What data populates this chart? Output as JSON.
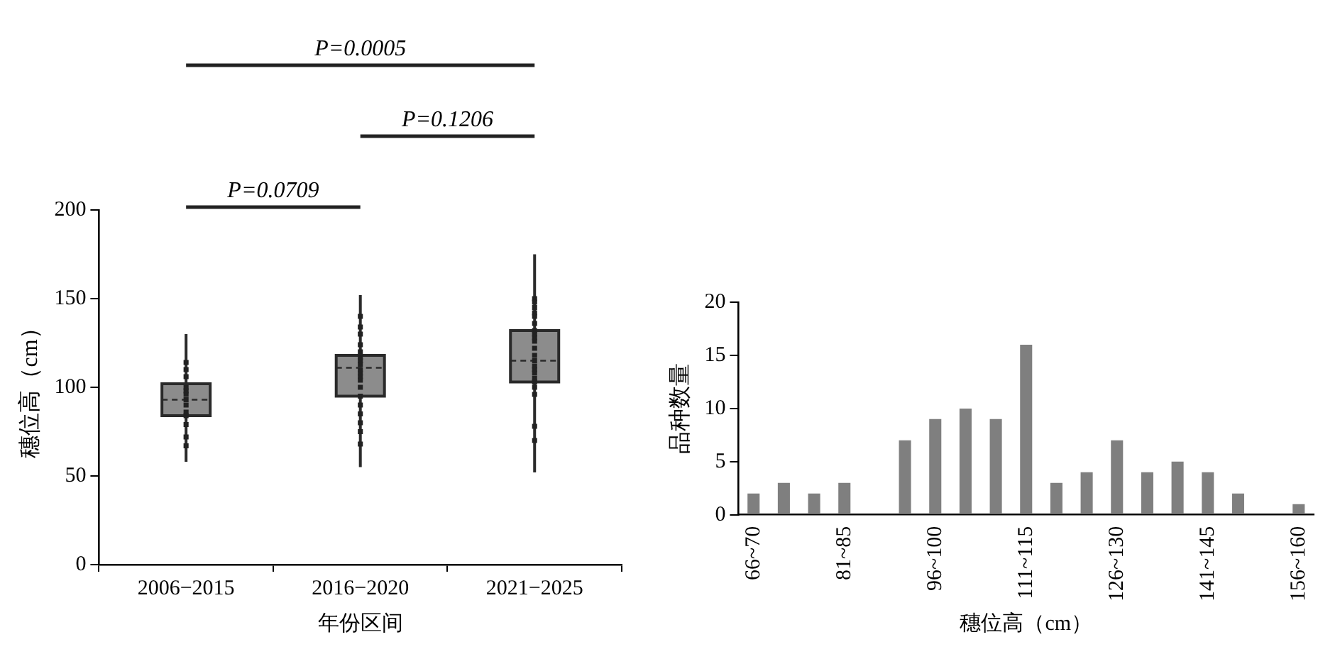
{
  "chart_data": [
    {
      "type": "box",
      "categories": [
        "2006−2015",
        "2016−2020",
        "2021−2025"
      ],
      "xlabel": "年份区间",
      "ylabel": "穗位高（cm）",
      "ylim": [
        0,
        200
      ],
      "yticks": [
        0,
        50,
        100,
        150,
        200
      ],
      "grid": false,
      "annotations": [
        "P=0.0005",
        "P=0.1206",
        "P=0.0709"
      ],
      "series": [
        {
          "type": "box",
          "color": "#8c8c8c",
          "boxes": [
            {
              "low": 58,
              "q1": 84,
              "median": 93,
              "q3": 102,
              "high": 130
            },
            {
              "low": 55,
              "q1": 95,
              "median": 111,
              "q3": 118,
              "high": 152
            },
            {
              "low": 52,
              "q1": 103,
              "median": 115,
              "q3": 132,
              "high": 175
            }
          ]
        },
        {
          "type": "scatter",
          "color": "#222222",
          "x": [
            "2006−2015",
            "2006−2015",
            "2006−2015",
            "2006−2015",
            "2006−2015",
            "2006−2015",
            "2006−2015",
            "2006−2015",
            "2006−2015",
            "2006−2015",
            "2006−2015",
            "2006−2015",
            "2006−2015",
            "2016−2020",
            "2016−2020",
            "2016−2020",
            "2016−2020",
            "2016−2020",
            "2016−2020",
            "2016−2020",
            "2016−2020",
            "2016−2020",
            "2016−2020",
            "2016−2020",
            "2016−2020",
            "2016−2020",
            "2016−2020",
            "2016−2020",
            "2016−2020",
            "2016−2020",
            "2016−2020",
            "2016−2020",
            "2021−2025",
            "2021−2025",
            "2021−2025",
            "2021−2025",
            "2021−2025",
            "2021−2025",
            "2021−2025",
            "2021−2025",
            "2021−2025",
            "2021−2025",
            "2021−2025",
            "2021−2025",
            "2021−2025",
            "2021−2025",
            "2021−2025",
            "2021−2025",
            "2021−2025",
            "2021−2025",
            "2021−2025",
            "2021−2025",
            "2021−2025",
            "2021−2025"
          ],
          "values": [
            114,
            110,
            106,
            100,
            98,
            96,
            93,
            90,
            86,
            84,
            79,
            72,
            67,
            140,
            134,
            130,
            124,
            120,
            117,
            115,
            113,
            110,
            108,
            106,
            104,
            100,
            95,
            90,
            85,
            80,
            75,
            68,
            150,
            148,
            145,
            142,
            140,
            136,
            132,
            130,
            128,
            126,
            122,
            118,
            115,
            112,
            110,
            108,
            105,
            103,
            100,
            96,
            78,
            70
          ]
        }
      ]
    },
    {
      "type": "bar",
      "categories": [
        "66~70",
        null,
        null,
        "81~85",
        null,
        null,
        "96~100",
        null,
        null,
        "111~115",
        null,
        null,
        "126~130",
        null,
        null,
        "141~145",
        null,
        null,
        "156~160"
      ],
      "xlabel": "穗位高（cm）",
      "ylabel": "品种数量",
      "ylim": [
        0,
        20
      ],
      "yticks": [
        0,
        5,
        10,
        15,
        20
      ],
      "grid": false,
      "series": [
        {
          "color": "#7f7f7f",
          "values": [
            2,
            3,
            2,
            3,
            0,
            7,
            9,
            10,
            9,
            16,
            3,
            4,
            7,
            4,
            5,
            4,
            2,
            0,
            1
          ]
        }
      ]
    }
  ]
}
